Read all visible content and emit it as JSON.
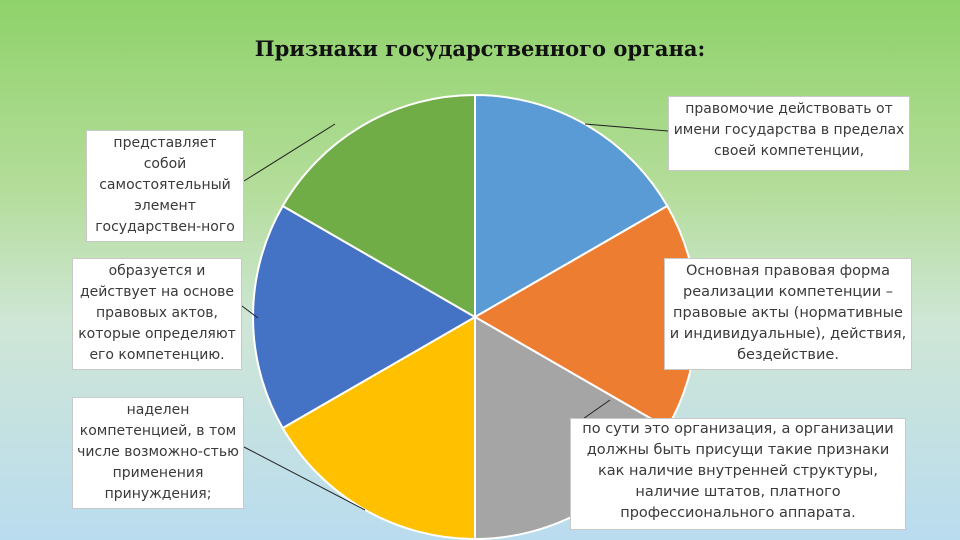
{
  "title": "Признаки государственного органа:",
  "pie": {
    "slices": [
      {
        "color": "#5b9bd5",
        "value": 1
      },
      {
        "color": "#ed7d31",
        "value": 1
      },
      {
        "color": "#a5a5a5",
        "value": 1
      },
      {
        "color": "#ffc000",
        "value": 1
      },
      {
        "color": "#4472c4",
        "value": 1
      },
      {
        "color": "#70ad47",
        "value": 1
      }
    ]
  },
  "labels": [
    "правомочие действовать от имени государства в пределах своей компетенции,",
    "Основная правовая форма реализации компетенции – правовые акты (нормативные и индивидуальные), действия, бездействие.",
    "по сути это организация, а организации должны быть присущи такие признаки как наличие внутренней структуры, наличие штатов, платного профессионального аппарата.",
    "наделен компетенцией, в том числе возможно-стью применения принуждения;",
    "образуется и действует на основе правовых актов, которые определяют его компетенцию.",
    "представляет собой самостоятельный элемент государствен-ного аппарата;"
  ]
}
